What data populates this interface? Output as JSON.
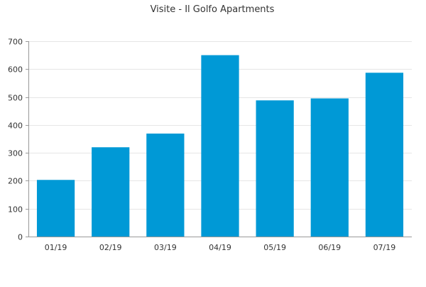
{
  "chart_data": {
    "type": "bar",
    "title": "Visite - Il Golfo Apartments",
    "xlabel": "",
    "ylabel": "",
    "categories": [
      "01/19",
      "02/19",
      "03/19",
      "04/19",
      "05/19",
      "06/19",
      "07/19"
    ],
    "values": [
      203,
      320,
      369,
      650,
      488,
      495,
      587
    ],
    "ylim": [
      0,
      700
    ],
    "yticks": [
      0,
      100,
      200,
      300,
      400,
      500,
      600,
      700
    ],
    "grid": true,
    "legend": "none",
    "colors": {
      "bar": "#0099d6",
      "grid": "#e6e6e6",
      "axis": "#999999",
      "text": "#333333"
    }
  }
}
